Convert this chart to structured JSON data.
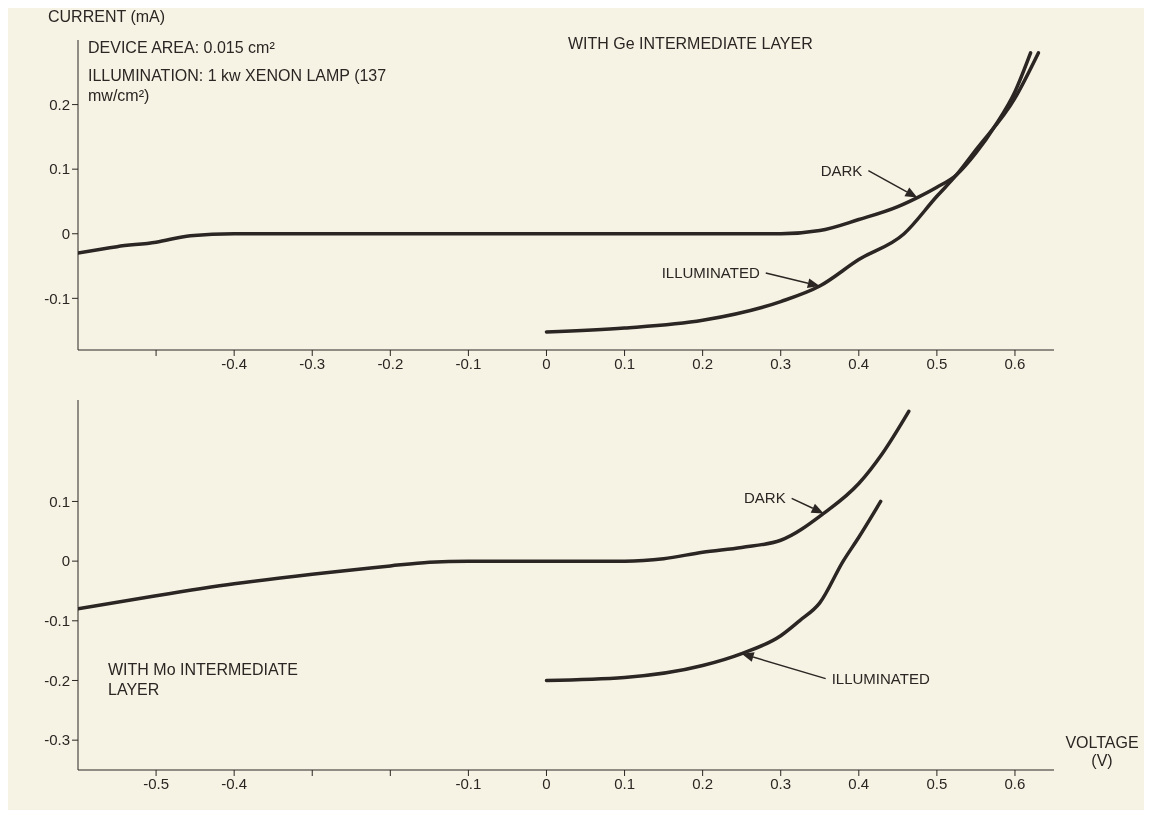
{
  "chart_data": [
    {
      "type": "line",
      "ylabel": "CURRENT (mA)",
      "annotations": [
        "DEVICE AREA: 0.015 cm²",
        "ILLUMINATION: 1 kw XENON LAMP (137 mw/cm²)",
        "WITH Ge INTERMEDIATE LAYER"
      ],
      "xlim": [
        -0.6,
        0.65
      ],
      "xticks": [
        {
          "value": -0.5,
          "label": null
        },
        -0.4,
        -0.3,
        -0.2,
        -0.1,
        0,
        0.1,
        0.2,
        0.3,
        0.4,
        0.5,
        0.6
      ],
      "ylim": [
        -0.18,
        0.3
      ],
      "yticks": [
        -0.1,
        0,
        0.1,
        0.2
      ],
      "series": [
        {
          "name": "DARK",
          "color": "#2b2523",
          "x": [
            -0.6,
            -0.55,
            -0.5,
            -0.456,
            -0.4,
            -0.3,
            -0.2,
            -0.1,
            0,
            0.1,
            0.2,
            0.3,
            0.35,
            0.4,
            0.45,
            0.475,
            0.5,
            0.525,
            0.55,
            0.575,
            0.6,
            0.62
          ],
          "values": [
            -0.03,
            -0.02,
            -0.013,
            -0.003,
            0,
            0,
            0,
            0,
            0,
            0,
            0,
            0,
            0.005,
            0.022,
            0.042,
            0.056,
            0.072,
            0.091,
            0.125,
            0.168,
            0.22,
            0.28
          ]
        },
        {
          "name": "ILLUMINATED",
          "color": "#2b2523",
          "x": [
            0,
            0.1,
            0.2,
            0.3,
            0.35,
            0.4,
            0.458,
            0.5,
            0.525,
            0.55,
            0.6,
            0.63
          ],
          "values": [
            -0.152,
            -0.146,
            -0.134,
            -0.105,
            -0.081,
            -0.04,
            0,
            0.058,
            0.091,
            0.13,
            0.21,
            0.28
          ]
        }
      ]
    },
    {
      "type": "line",
      "xlabel": "VOLTAGE (V)",
      "annotations": [
        "WITH Mo INTERMEDIATE LAYER"
      ],
      "xlim": [
        -0.6,
        0.65
      ],
      "xticks": [
        -0.5,
        -0.4,
        {
          "value": -0.3,
          "label": null
        },
        {
          "value": -0.2,
          "label": null
        },
        -0.1,
        0,
        0.1,
        0.2,
        0.3,
        0.4,
        0.5,
        0.6
      ],
      "ylim": [
        -0.35,
        0.27
      ],
      "yticks": [
        -0.3,
        -0.2,
        -0.1,
        0,
        0.1
      ],
      "series": [
        {
          "name": "DARK",
          "color": "#2b2523",
          "x": [
            -0.6,
            -0.5,
            -0.4,
            -0.3,
            -0.2,
            -0.15,
            -0.1,
            0,
            0.1,
            0.15,
            0.2,
            0.25,
            0.3,
            0.355,
            0.4,
            0.43,
            0.464
          ],
          "values": [
            -0.08,
            -0.058,
            -0.038,
            -0.022,
            -0.008,
            -0.002,
            0,
            0,
            0,
            0.004,
            0.015,
            0.023,
            0.035,
            0.08,
            0.13,
            0.18,
            0.251
          ]
        },
        {
          "name": "ILLUMINATED",
          "color": "#2b2523",
          "x": [
            0,
            0.1,
            0.2,
            0.25,
            0.3,
            0.324,
            0.35,
            0.38,
            0.4,
            0.428
          ],
          "values": [
            -0.2,
            -0.195,
            -0.175,
            -0.155,
            -0.125,
            -0.1,
            -0.07,
            0,
            0.04,
            0.1
          ]
        }
      ]
    }
  ]
}
